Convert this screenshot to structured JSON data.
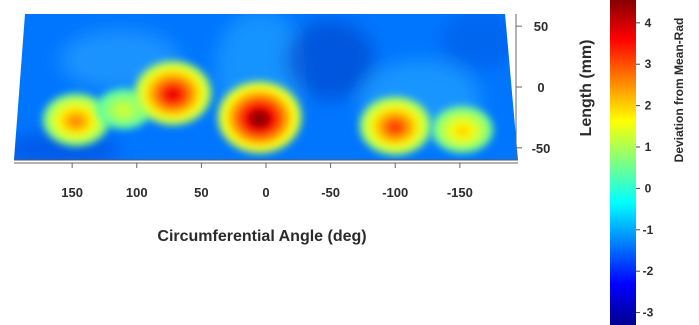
{
  "chart_data": {
    "type": "heatmap",
    "title": "",
    "xlabel": "Circumferential Angle (deg)",
    "ylabel": "Length (mm)",
    "colorbar_label": "Deviation from Mean-Rad",
    "x_ticks": [
      150,
      100,
      50,
      0,
      -50,
      -100,
      -150
    ],
    "y_ticks": [
      50,
      0,
      -50
    ],
    "colorbar_ticks": [
      4,
      3,
      2,
      1,
      0,
      -1,
      -2,
      -3
    ],
    "xlim": [
      195,
      -195
    ],
    "ylim": [
      -60,
      60
    ],
    "clim": [
      -3.3,
      4.6
    ],
    "colormap": "jet",
    "background_value": 0.0,
    "x_axis_direction": "reversed",
    "hotspots": [
      {
        "x": 147,
        "y": -27,
        "value": 2.6
      },
      {
        "x": 110,
        "y": -18,
        "value": 1.3
      },
      {
        "x": 72,
        "y": -5,
        "value": 3.8
      },
      {
        "x": 5,
        "y": -25,
        "value": 4.6
      },
      {
        "x": -100,
        "y": -32,
        "value": 3.2
      },
      {
        "x": -152,
        "y": -35,
        "value": 2.0
      }
    ]
  }
}
